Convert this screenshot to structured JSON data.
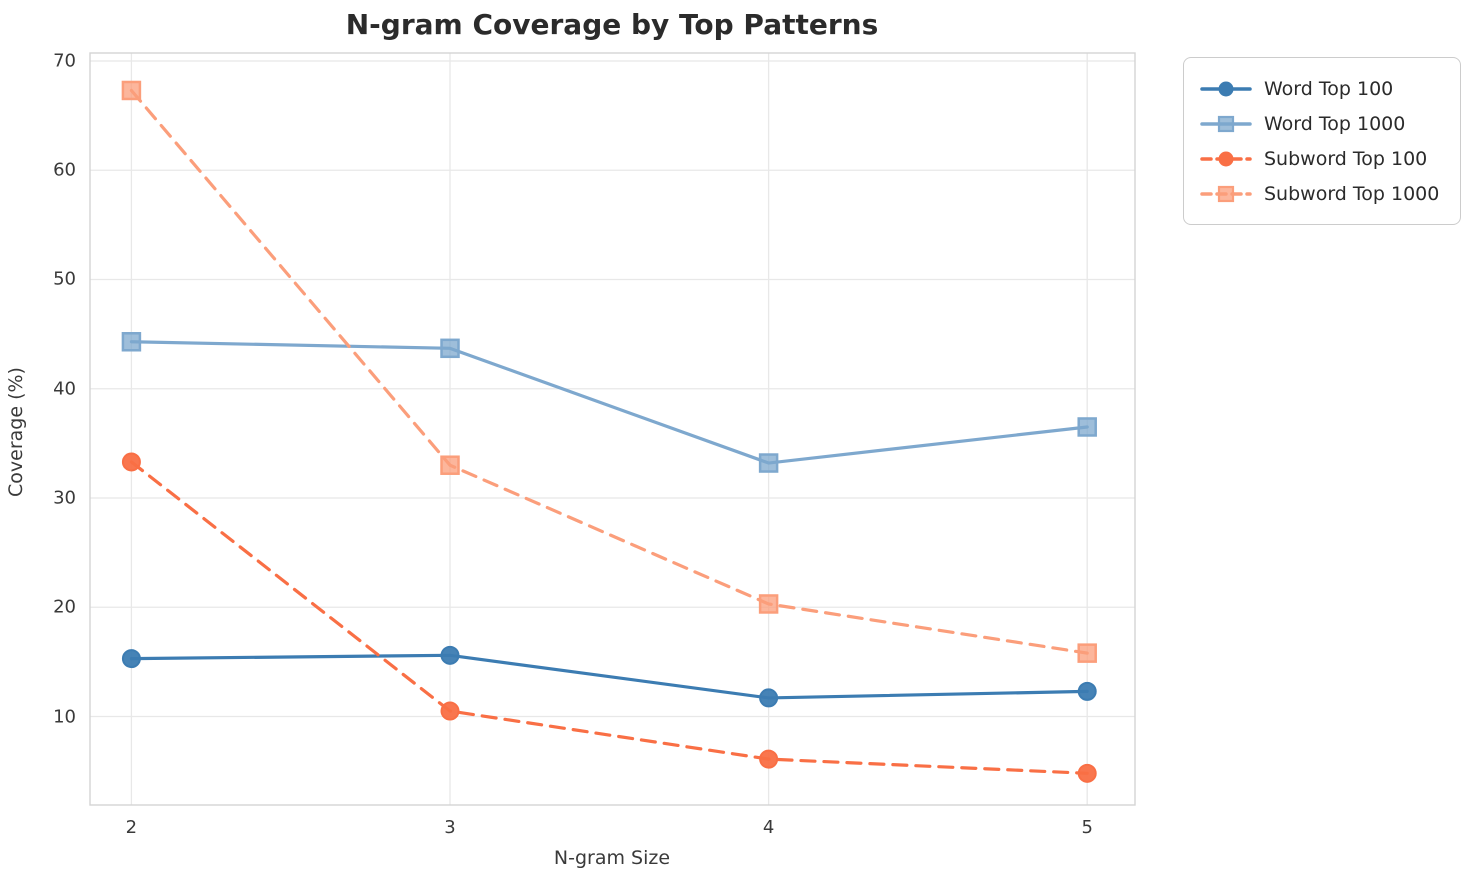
{
  "title": "N-gram Coverage by Top Patterns",
  "chart_data": {
    "type": "line",
    "x": [
      2,
      3,
      4,
      5
    ],
    "xlabel": "N-gram Size",
    "ylabel": "Coverage (%)",
    "xticks": [
      "2",
      "3",
      "4",
      "5"
    ],
    "yticks": [
      "10",
      "20",
      "30",
      "40",
      "50",
      "60",
      "70"
    ],
    "xlim": [
      1.87,
      5.15
    ],
    "ylim": [
      1.9,
      70.73
    ],
    "grid": true,
    "legend_position": "outside-upper-right",
    "series": [
      {
        "name": "Word Top 100",
        "values": [
          15.3,
          15.6,
          11.7,
          12.3
        ],
        "color": "#3C7CB2",
        "linestyle": "solid",
        "marker": "circle"
      },
      {
        "name": "Word Top 1000",
        "values": [
          44.3,
          43.7,
          33.2,
          36.5
        ],
        "color": "#7EA8CE",
        "linestyle": "solid",
        "marker": "square"
      },
      {
        "name": "Subword Top 100",
        "values": [
          33.3,
          10.5,
          6.1,
          4.8
        ],
        "color": "#F96F45",
        "linestyle": "dashed",
        "marker": "circle"
      },
      {
        "name": "Subword Top 1000",
        "values": [
          67.3,
          33.0,
          20.3,
          15.8
        ],
        "color": "#FB9E7B",
        "linestyle": "dashed",
        "marker": "square"
      }
    ],
    "colors": {
      "grid": "#e8e8e8",
      "spine": "#d4d4d4",
      "text": "#2b2b2b"
    }
  }
}
